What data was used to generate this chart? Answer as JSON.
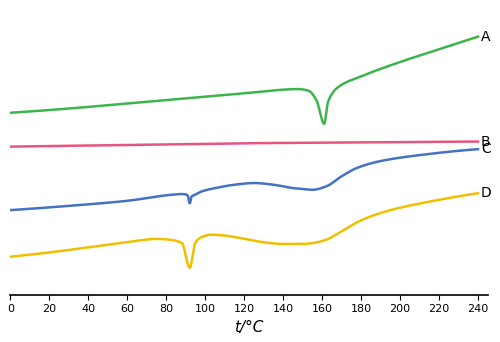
{
  "xlabel": "t/°C",
  "xmin": 0,
  "xmax": 240,
  "xticks": [
    0,
    20,
    40,
    60,
    80,
    100,
    120,
    140,
    160,
    180,
    200,
    220,
    240
  ],
  "label_A": "A",
  "label_B": "B",
  "label_C": "C",
  "label_D": "D",
  "color_A": "#3cb54a",
  "color_B": "#e75480",
  "color_C": "#4472c4",
  "color_D": "#f0c000",
  "linewidth": 1.8,
  "curve_A": {
    "x": [
      0,
      30,
      60,
      90,
      120,
      148,
      153,
      157,
      161,
      163,
      168,
      180,
      200,
      220,
      240
    ],
    "y": [
      13.5,
      14.0,
      14.6,
      15.2,
      15.8,
      16.3,
      16.1,
      15.0,
      12.2,
      14.8,
      16.5,
      17.8,
      19.5,
      21.0,
      22.5
    ]
  },
  "curve_B": {
    "x": [
      0,
      60,
      120,
      180,
      240
    ],
    "y": [
      9.5,
      9.7,
      9.9,
      10.0,
      10.1
    ]
  },
  "curve_C": {
    "x": [
      0,
      30,
      60,
      82,
      88,
      90,
      91,
      92,
      93,
      95,
      98,
      105,
      115,
      125,
      135,
      145,
      150,
      155,
      162,
      170,
      178,
      190,
      210,
      240
    ],
    "y": [
      2.0,
      2.5,
      3.1,
      3.8,
      3.9,
      3.85,
      3.7,
      2.8,
      3.6,
      3.85,
      4.2,
      4.6,
      5.0,
      5.2,
      5.0,
      4.6,
      4.5,
      4.4,
      4.8,
      6.0,
      7.0,
      7.8,
      8.5,
      9.2
    ]
  },
  "curve_D": {
    "x": [
      0,
      20,
      40,
      60,
      75,
      82,
      88,
      92,
      95,
      98,
      103,
      110,
      120,
      130,
      140,
      150,
      155,
      162,
      170,
      180,
      195,
      215,
      240
    ],
    "y": [
      -3.5,
      -3.0,
      -2.4,
      -1.8,
      -1.4,
      -1.5,
      -1.9,
      -4.8,
      -1.8,
      -1.2,
      -0.9,
      -1.0,
      -1.4,
      -1.8,
      -2.0,
      -2.0,
      -1.9,
      -1.5,
      -0.5,
      0.8,
      2.0,
      3.0,
      4.0
    ]
  },
  "ylim": [
    -8,
    26
  ]
}
